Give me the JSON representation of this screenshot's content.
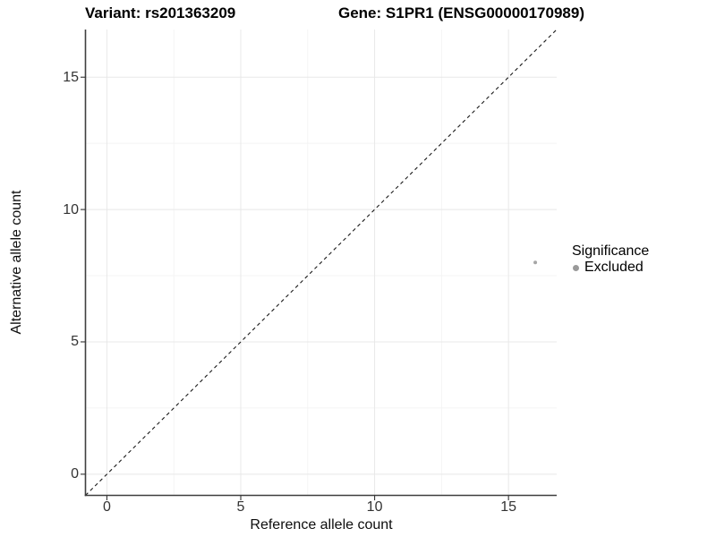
{
  "titles": {
    "variant": "Variant: rs201363209",
    "gene": "Gene: S1PR1 (ENSG00000170989)"
  },
  "chart_data": {
    "type": "scatter",
    "xlabel": "Reference allele count",
    "ylabel": "Alternative allele count",
    "xlim": [
      -0.8,
      16.8
    ],
    "ylim": [
      -0.8,
      16.8
    ],
    "xticks": [
      0,
      5,
      10,
      15
    ],
    "yticks": [
      0,
      5,
      10,
      15
    ],
    "xticks_minor": [
      2.5,
      7.5,
      12.5
    ],
    "yticks_minor": [
      2.5,
      7.5,
      12.5
    ],
    "grid": true,
    "points": [
      {
        "x": 16,
        "y": 8,
        "significance": "Excluded",
        "color": "#a6a6a6",
        "radius": 2
      }
    ],
    "identity_line": {
      "style": "dashed",
      "color": "#1a1a1a",
      "from": -0.8,
      "to": 16.8
    },
    "legend": {
      "position": "right",
      "title": "Significance",
      "items": [
        {
          "label": "Excluded",
          "color": "#9a9a9a"
        }
      ]
    },
    "colors": {
      "background": "#ffffff",
      "grid_major": "#e8e8e8",
      "grid_minor": "#f4f4f4",
      "axis_line": "#3f3f3f",
      "tick_mark": "#333333",
      "tick_label": "#333333"
    }
  }
}
